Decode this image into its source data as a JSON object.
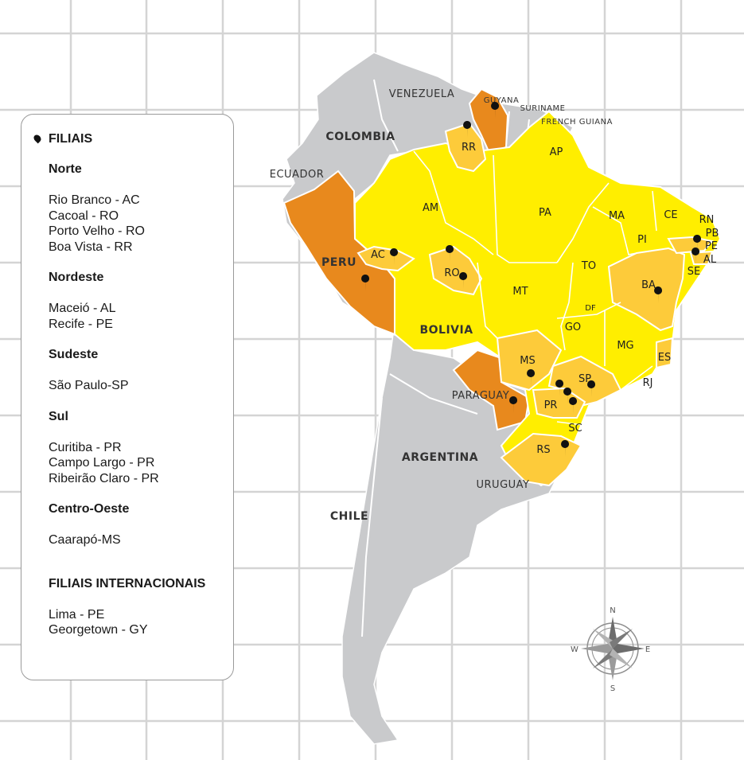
{
  "legend": {
    "title": "FILIAIS",
    "regions": [
      {
        "name": "Norte",
        "branches": [
          "Rio Branco - AC",
          "Cacoal - RO",
          "Porto Velho - RO",
          "Boa Vista - RR"
        ]
      },
      {
        "name": "Nordeste",
        "branches": [
          "Maceió - AL",
          "Recife - PE"
        ]
      },
      {
        "name": "Sudeste",
        "branches": [
          "São Paulo-SP"
        ]
      },
      {
        "name": "Sul",
        "branches": [
          "Curitiba - PR",
          "Campo Largo - PR",
          "Ribeirão Claro - PR"
        ]
      },
      {
        "name": "Centro-Oeste",
        "branches": [
          "Caarapó-MS"
        ]
      }
    ],
    "international_title": "FILIAIS INTERNACIONAIS",
    "international_branches": [
      "Lima - PE",
      "Georgetown - GY"
    ]
  },
  "countries": [
    "VENEZUELA",
    "GUYANA",
    "SURINAME",
    "FRENCH GUIANA",
    "COLOMBIA",
    "ECUADOR",
    "PERU",
    "BOLIVIA",
    "PARAGUAY",
    "ARGENTINA",
    "URUGUAY",
    "CHILE"
  ],
  "states": [
    "RR",
    "AP",
    "AM",
    "PA",
    "MA",
    "CE",
    "RN",
    "PB",
    "PE",
    "AL",
    "SE",
    "PI",
    "AC",
    "RO",
    "TO",
    "BA",
    "MT",
    "DF",
    "GO",
    "MG",
    "ES",
    "MS",
    "SP",
    "RJ",
    "PR",
    "SC",
    "RS"
  ],
  "compass": {
    "n": "N",
    "s": "S",
    "e": "E",
    "w": "W"
  },
  "colors": {
    "continent": "#c9cacc",
    "brazil_base": "#ffee00",
    "branch_state": "#fdcb3a",
    "branch_country": "#e8891d",
    "grid": "#d4d4d4",
    "pin": "#111111",
    "border": "#ffffff"
  },
  "icons": {
    "pin": "map-pin-icon",
    "compass": "compass-rose-icon"
  }
}
